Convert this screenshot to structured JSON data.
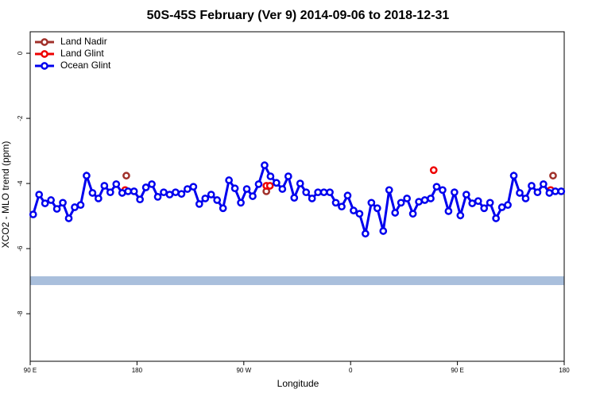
{
  "chart_data": {
    "type": "line",
    "title": "50S-45S February (Ver 9)   2014-09-06 to 2018-12-31",
    "x_label": "Longitude",
    "y_label": "XCO2 - MLO trend (ppm)",
    "xlim": [
      90,
      540
    ],
    "ylim": [
      -9.46,
      0.66
    ],
    "xticks": [
      {
        "value": 90,
        "label": "90 E"
      },
      {
        "value": 180,
        "label": "180"
      },
      {
        "value": 270,
        "label": "90 W"
      },
      {
        "value": 360,
        "label": "0"
      },
      {
        "value": 450,
        "label": "90 E"
      },
      {
        "value": 540,
        "label": "180"
      }
    ],
    "yticks": [
      0,
      -2,
      -4,
      -6,
      -8
    ],
    "band": [
      -7.12,
      -6.85
    ],
    "band_color": "#a9bfdc",
    "legend": "top-left",
    "series": [
      {
        "name": "Land Nadir",
        "color": "#a0302a",
        "lines": false,
        "x": [
          171,
          289,
          530.6
        ],
        "values": [
          -3.76,
          -4.24,
          -3.76
        ]
      },
      {
        "name": "Land Glint",
        "color": "#ee0000",
        "lines": false,
        "x": [
          170,
          289,
          292,
          430,
          528.6
        ],
        "values": [
          -4.2,
          -4.07,
          -4.07,
          -3.59,
          -4.2
        ]
      },
      {
        "name": "Ocean Glint",
        "color": "#0000ee",
        "lines": true,
        "x": [
          92.5,
          97.5,
          102.5,
          107.5,
          112.5,
          117.5,
          122.5,
          127.5,
          132.5,
          137.5,
          142.5,
          147.5,
          152.5,
          157.5,
          162.5,
          167.5,
          172.5,
          177.5,
          182.5,
          187.5,
          192.5,
          197.5,
          202.5,
          207.5,
          212.5,
          217.5,
          222.5,
          227.5,
          232.5,
          237.5,
          242.5,
          247.5,
          252.5,
          257.5,
          262.5,
          267.5,
          272.5,
          277.5,
          282.5,
          287.5,
          292.5,
          297.5,
          302.5,
          307.5,
          312.5,
          317.5,
          322.5,
          327.5,
          332.5,
          337.5,
          342.5,
          347.5,
          352.5,
          357.5,
          362.5,
          367.5,
          372.5,
          377.5,
          382.5,
          387.5,
          392.5,
          397.5,
          402.5,
          407.5,
          412.5,
          417.5,
          422.5,
          427.5,
          432.5,
          437.5,
          442.5,
          447.5,
          452.5,
          457.5,
          462.5,
          467.5,
          472.5,
          477.5,
          482.5,
          487.5,
          492.5,
          497.5,
          502.5,
          507.5,
          512.5,
          517.5,
          522.5,
          527.5,
          532.5,
          537.5
        ],
        "values": [
          -4.95,
          -4.34,
          -4.61,
          -4.51,
          -4.78,
          -4.59,
          -5.07,
          -4.73,
          -4.66,
          -3.76,
          -4.29,
          -4.46,
          -4.07,
          -4.27,
          -4.02,
          -4.29,
          -4.24,
          -4.24,
          -4.49,
          -4.12,
          -4.02,
          -4.41,
          -4.27,
          -4.34,
          -4.27,
          -4.32,
          -4.17,
          -4.1,
          -4.63,
          -4.46,
          -4.34,
          -4.51,
          -4.76,
          -3.9,
          -4.15,
          -4.59,
          -4.17,
          -4.39,
          -4.02,
          -3.44,
          -3.78,
          -3.98,
          -4.17,
          -3.78,
          -4.44,
          -4.0,
          -4.27,
          -4.46,
          -4.27,
          -4.27,
          -4.27,
          -4.59,
          -4.71,
          -4.37,
          -4.83,
          -4.93,
          -5.54,
          -4.59,
          -4.76,
          -5.46,
          -4.2,
          -4.9,
          -4.59,
          -4.46,
          -4.93,
          -4.56,
          -4.51,
          -4.46,
          -4.1,
          -4.2,
          -4.85,
          -4.27,
          -4.98,
          -4.34,
          -4.61,
          -4.54,
          -4.76,
          -4.59,
          -5.07,
          -4.73,
          -4.66,
          -3.76,
          -4.29,
          -4.46,
          -4.07,
          -4.27,
          -4.02,
          -4.29,
          -4.24,
          -4.24
        ]
      }
    ]
  }
}
